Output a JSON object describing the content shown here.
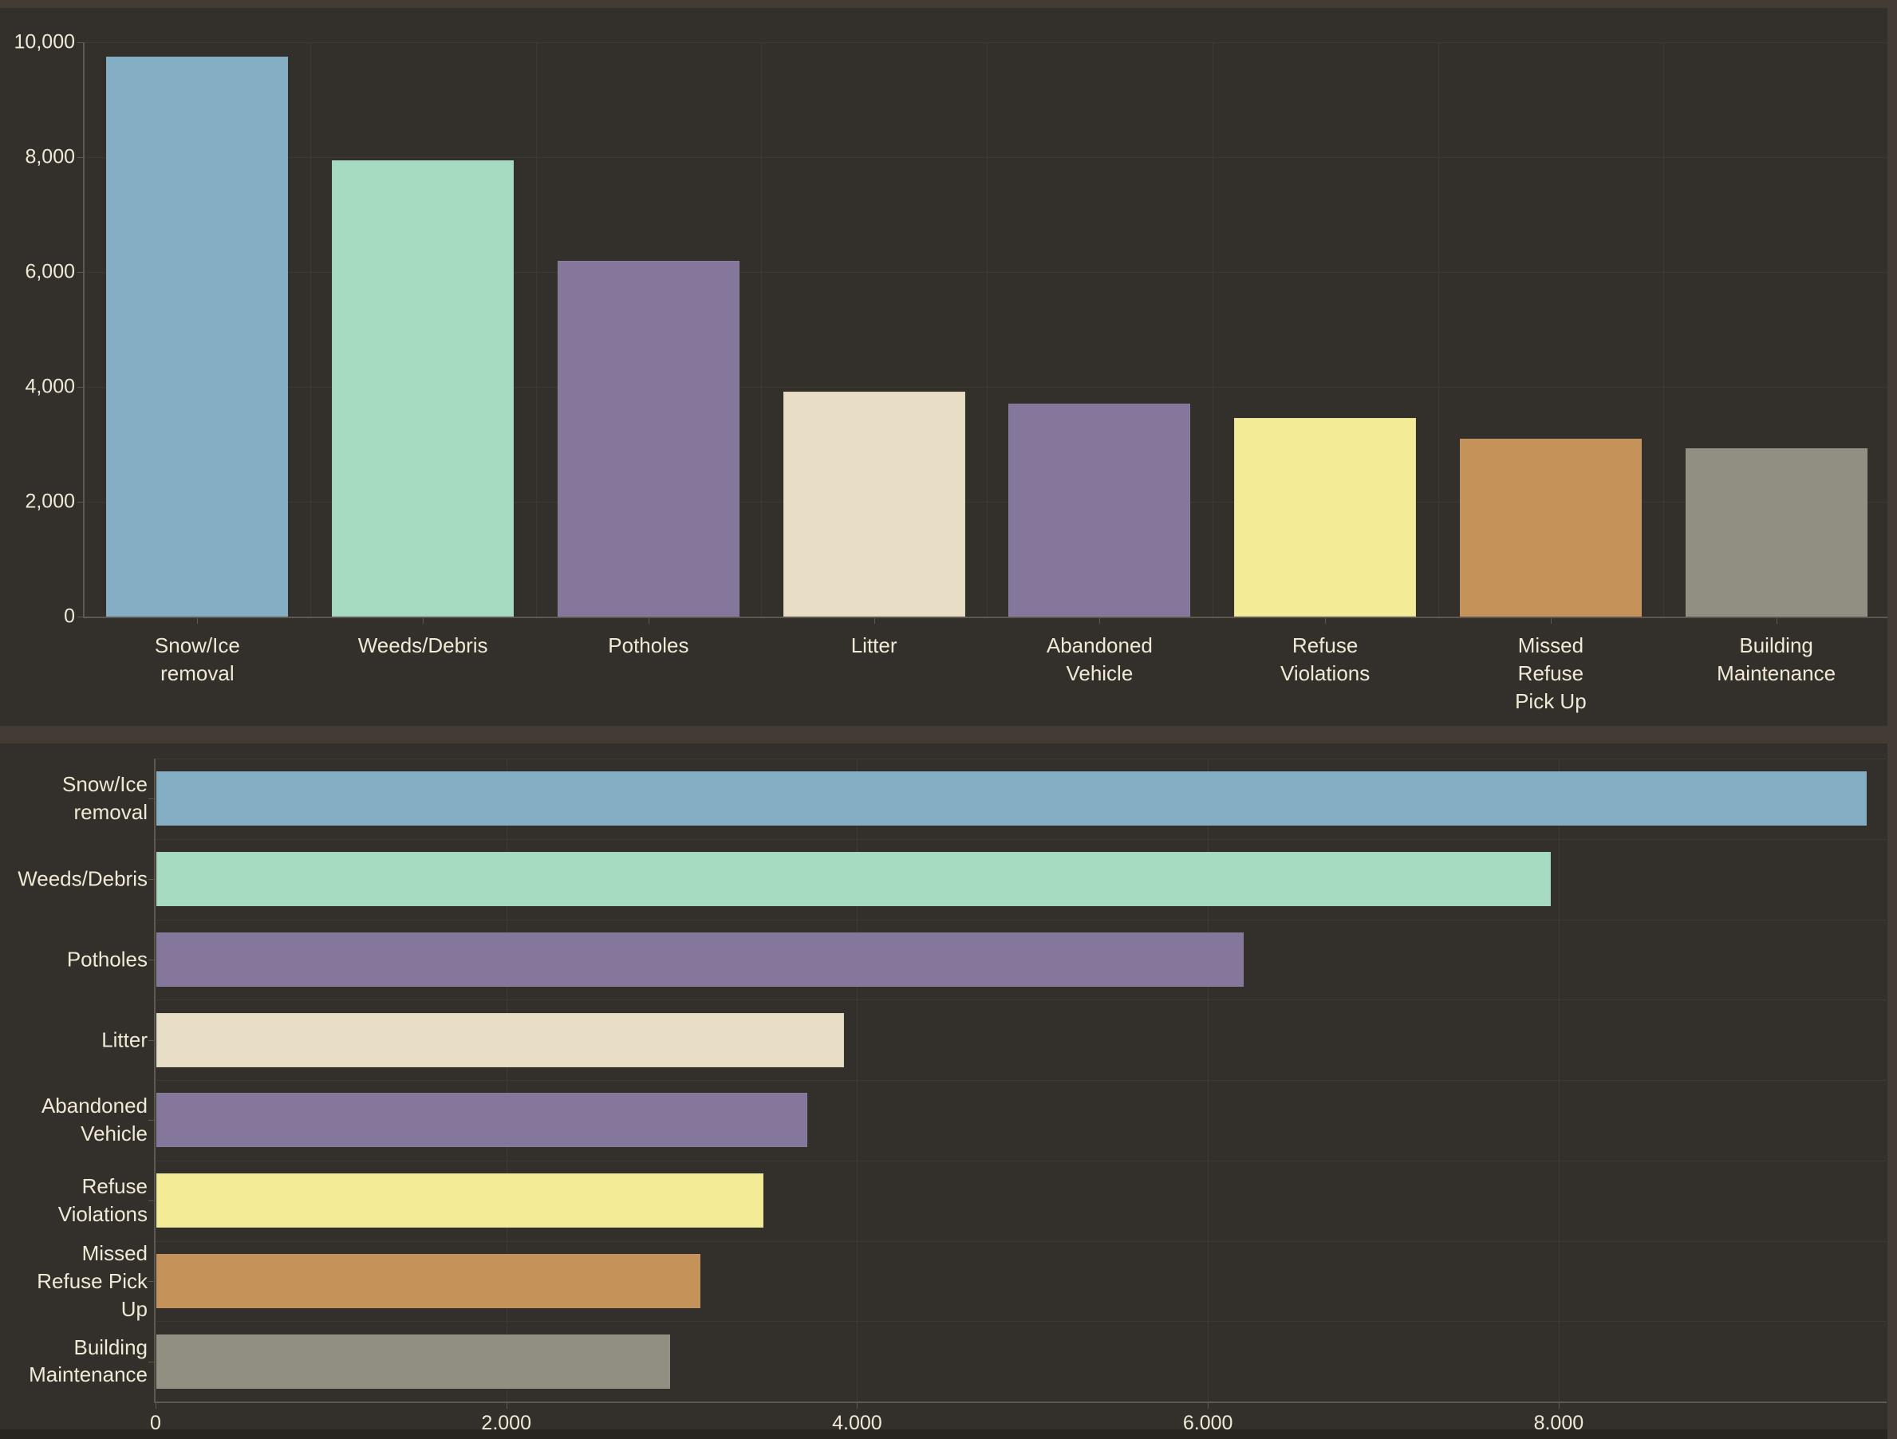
{
  "palette": {
    "background": "#332f2a",
    "panel_accent": "#433c35",
    "bottom_edge": "#282521",
    "gridline": "#3d3933",
    "axis": "#5d594f",
    "label_text": "#f0e9d6"
  },
  "chart_data": [
    {
      "type": "bar",
      "orientation": "vertical",
      "title": "",
      "categories": [
        "Snow/Ice removal",
        "Weeds/Debris",
        "Potholes",
        "Litter",
        "Abandoned Vehicle",
        "Refuse Violations",
        "Missed Refuse Pick Up",
        "Building Maintenance"
      ],
      "values": [
        9750,
        7950,
        6200,
        3920,
        3710,
        3460,
        3100,
        2930
      ],
      "colors": [
        "#83aec3",
        "#a6dbc1",
        "#84779b",
        "#e8ddc5",
        "#84779b",
        "#f3eb95",
        "#c5925a",
        "#908f82"
      ],
      "xlabel": "",
      "ylabel": "",
      "ylim": [
        0,
        10000
      ],
      "grid": true,
      "legend": false,
      "value_ticks": [
        0,
        2000,
        4000,
        6000,
        8000,
        10000
      ],
      "value_tick_labels": [
        "0",
        "2,000",
        "4,000",
        "6,000",
        "8,000",
        "10,000"
      ],
      "category_tick_labels": [
        "Snow/Ice\nremoval",
        "Weeds/Debris",
        "Potholes",
        "Litter",
        "Abandoned\nVehicle",
        "Refuse\nViolations",
        "Missed\nRefuse\nPick Up",
        "Building\nMaintenance"
      ]
    },
    {
      "type": "bar",
      "orientation": "horizontal",
      "title": "",
      "categories": [
        "Snow/Ice removal",
        "Weeds/Debris",
        "Potholes",
        "Litter",
        "Abandoned Vehicle",
        "Refuse Violations",
        "Missed Refuse Pick Up",
        "Building Maintenance"
      ],
      "values": [
        9750,
        7950,
        6200,
        3920,
        3710,
        3460,
        3100,
        2930
      ],
      "colors": [
        "#83aec3",
        "#a6dbc1",
        "#84779b",
        "#e8ddc5",
        "#84779b",
        "#f3eb95",
        "#c5925a",
        "#908f82"
      ],
      "xlabel": "",
      "ylabel": "",
      "xlim": [
        0,
        9870
      ],
      "grid": true,
      "legend": false,
      "value_ticks": [
        0,
        2000,
        4000,
        6000,
        8000
      ],
      "value_tick_labels": [
        "0",
        "2,000",
        "4,000",
        "6,000",
        "8,000"
      ],
      "category_tick_labels": [
        "Snow/Ice\nremoval",
        "Weeds/Debris",
        "Potholes",
        "Litter",
        "Abandoned\nVehicle",
        "Refuse\nViolations",
        "Missed\nRefuse Pick\nUp",
        "Building\nMaintenance"
      ]
    }
  ]
}
